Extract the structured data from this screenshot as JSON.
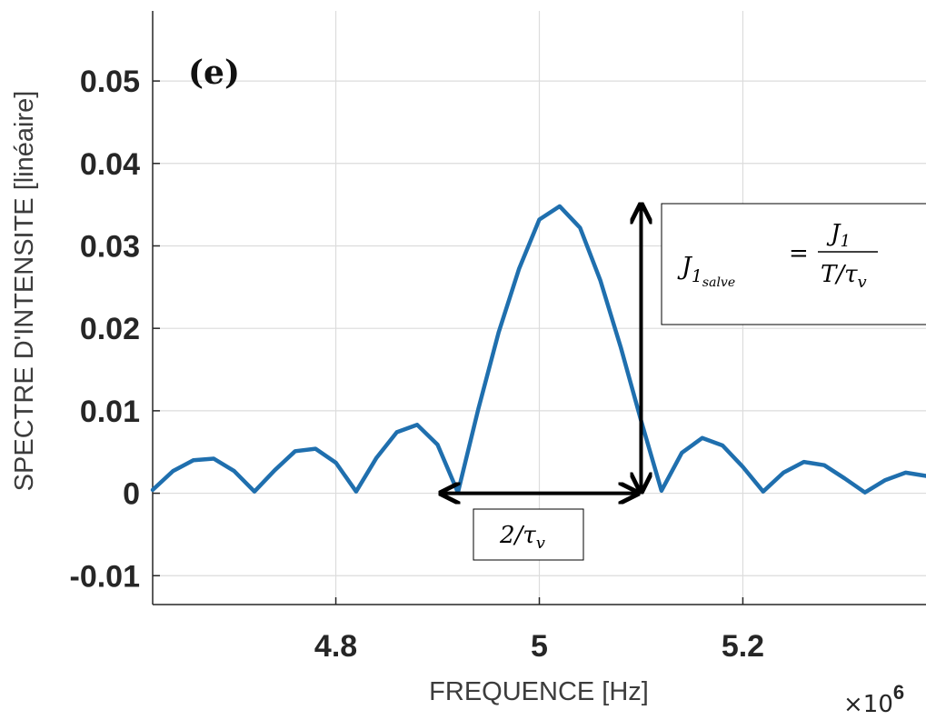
{
  "chart_data": {
    "type": "line",
    "title": "",
    "panel_label": "(e)",
    "xlabel": "FREQUENCE [Hz]",
    "ylabel": "SPECTRE D'INTENSITE [linéaire]",
    "x_exponent_label": {
      "prefix": "×10",
      "exponent": "6"
    },
    "xlim": [
      4.62,
      5.38
    ],
    "ylim": [
      -0.0135,
      0.0585
    ],
    "x_ticks": [
      4.8,
      5,
      5.2
    ],
    "x_tick_labels": [
      "4.8",
      "5",
      "5.2"
    ],
    "y_ticks": [
      -0.01,
      0,
      0.01,
      0.02,
      0.03,
      0.04,
      0.05
    ],
    "y_tick_labels": [
      "-0.01",
      "0",
      "0.01",
      "0.02",
      "0.03",
      "0.04",
      "0.05"
    ],
    "grid": true,
    "color": "#1f6fae",
    "series": [
      {
        "x": [
          4.62,
          4.64,
          4.66,
          4.68,
          4.7,
          4.72,
          4.74,
          4.76,
          4.78,
          4.8,
          4.82,
          4.84,
          4.86,
          4.88,
          4.9,
          4.92,
          4.94,
          4.96,
          4.98,
          5.0,
          5.02,
          5.04,
          5.06,
          5.08,
          5.1,
          5.12,
          5.14,
          5.16,
          5.18,
          5.2,
          5.22,
          5.24,
          5.26,
          5.28,
          5.3,
          5.32,
          5.34,
          5.36,
          5.38
        ],
        "y": [
          0.0004,
          0.0027,
          0.004,
          0.0042,
          0.0027,
          0.0002,
          0.0028,
          0.0051,
          0.0054,
          0.0037,
          0.0002,
          0.0043,
          0.0074,
          0.0083,
          0.0059,
          0.0001,
          0.0102,
          0.0195,
          0.0272,
          0.0332,
          0.0348,
          0.0322,
          0.0258,
          0.0177,
          0.0088,
          0.0003,
          0.0049,
          0.0067,
          0.0058,
          0.0032,
          0.0002,
          0.0025,
          0.0038,
          0.0034,
          0.0018,
          0.0001,
          0.0016,
          0.0025,
          0.0021
        ]
      }
    ],
    "annotations": {
      "height_box": {
        "lhs": "J",
        "lhs_sub": "1",
        "lhs_subsub": "salve",
        "eq": "=",
        "num": "J",
        "num_sub": "1",
        "den": "T/τ",
        "den_sub": "v"
      },
      "width_box": {
        "text": "2/τ",
        "sub": "v"
      },
      "width_arrow_x": [
        4.9,
        5.1
      ],
      "width_arrow_y": 0,
      "height_arrow_x": 5.1,
      "height_arrow_y": [
        0,
        0.035
      ]
    }
  }
}
